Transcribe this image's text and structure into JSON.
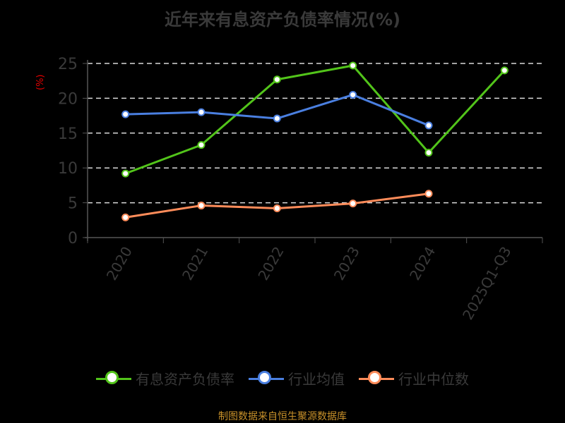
{
  "chart_data": {
    "type": "line",
    "title": "近年来有息资产负债率情况(%)",
    "ylabel": "(%)",
    "xlabel": "",
    "categories": [
      "2020",
      "2021",
      "2022",
      "2023",
      "2024",
      "2025Q1-Q3"
    ],
    "ylim": [
      0,
      25
    ],
    "yticks": [
      0,
      5,
      10,
      15,
      20,
      25
    ],
    "grid": true,
    "legend_position": "bottom",
    "series": [
      {
        "name": "有息资产负债率",
        "color": "#52c41a",
        "values": [
          9.2,
          13.3,
          22.7,
          24.7,
          12.2,
          24.0
        ]
      },
      {
        "name": "行业均值",
        "color": "#4a7fe0",
        "values": [
          17.7,
          18.0,
          17.1,
          20.5,
          16.1,
          null
        ]
      },
      {
        "name": "行业中位数",
        "color": "#ff8c5a",
        "values": [
          2.9,
          4.6,
          4.2,
          4.9,
          6.3,
          null
        ]
      }
    ]
  },
  "header": {
    "title": "近年来有息资产负债率情况(%)"
  },
  "axis": {
    "y_unit": "(%)"
  },
  "legend": [
    {
      "label": "有息资产负债率",
      "color": "#52c41a"
    },
    {
      "label": "行业均值",
      "color": "#4a7fe0"
    },
    {
      "label": "行业中位数",
      "color": "#ff8c5a"
    }
  ],
  "footer": {
    "source": "制图数据来自恒生聚源数据库"
  }
}
